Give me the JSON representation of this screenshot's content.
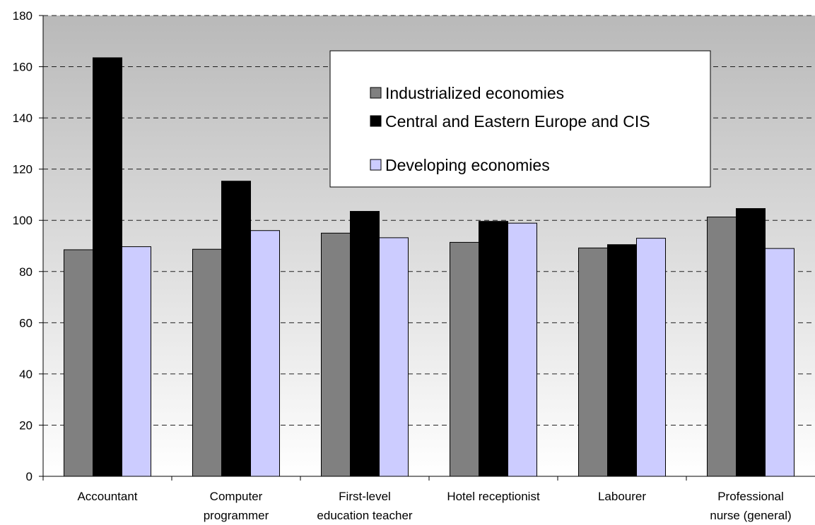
{
  "chart_data": {
    "type": "bar",
    "categories": [
      [
        "Accountant"
      ],
      [
        "Computer",
        "programmer"
      ],
      [
        "First-level",
        "education teacher"
      ],
      [
        "Hotel receptionist"
      ],
      [
        "Labourer"
      ],
      [
        "Professional",
        "nurse (general)"
      ]
    ],
    "series": [
      {
        "name": "Industrialized economies",
        "color": "#808080",
        "values": [
          88.5,
          88.7,
          95.0,
          91.4,
          89.2,
          101.3
        ]
      },
      {
        "name": "Central and Eastern Europe and CIS",
        "color": "#000000",
        "values": [
          163.5,
          115.3,
          103.5,
          99.6,
          90.5,
          104.6
        ]
      },
      {
        "name": "Developing economies",
        "color": "#ccccff",
        "values": [
          89.7,
          96.0,
          93.2,
          98.9,
          93.0,
          89.0
        ]
      }
    ],
    "yticks": [
      "0",
      "20",
      "40",
      "60",
      "80",
      "100",
      "120",
      "140",
      "160",
      "180"
    ],
    "ylim": [
      0,
      180
    ],
    "grid": true,
    "legend_position": "top-right",
    "title": "",
    "xlabel": "",
    "ylabel": ""
  }
}
